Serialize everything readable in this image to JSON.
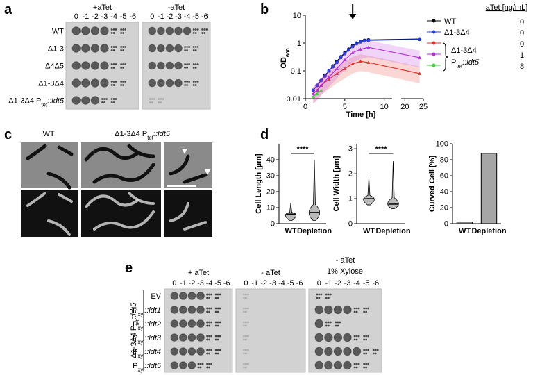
{
  "panel_a": {
    "letter": "a",
    "conditions": [
      "+aTet",
      "-aTet"
    ],
    "dilutions": [
      "0",
      "-1",
      "-2",
      "-3",
      "-4",
      "-5",
      "-6"
    ],
    "strains": [
      "WT",
      "Δ1-3",
      "Δ4Δ5",
      "Δ1-3Δ4",
      {
        "parts": [
          {
            "t": "Δ1-3Δ4 P"
          },
          {
            "t": "tet",
            "sub": true
          },
          {
            "t": "::ldt5",
            "i": true
          }
        ]
      }
    ]
  },
  "panel_c": {
    "letter": "c",
    "labels": [
      "WT",
      {
        "parts": [
          {
            "t": "Δ1-3Δ4 P"
          },
          {
            "t": "tet",
            "sub": true
          },
          {
            "t": "::ldt5",
            "i": true
          }
        ]
      }
    ]
  },
  "panel_e": {
    "letter": "e",
    "conditions": [
      "+ aTet",
      "- aTet",
      "- aTet"
    ],
    "condition_note": "1% Xylose",
    "dilutions": [
      "0",
      "-1",
      "-2",
      "-3",
      "-4",
      "-5",
      "-6"
    ],
    "strains": [
      "EV",
      {
        "parts": [
          {
            "t": "P"
          },
          {
            "t": "xyl",
            "sub": true
          },
          {
            "t": "::ldt1",
            "i": true
          }
        ]
      },
      {
        "parts": [
          {
            "t": "P"
          },
          {
            "t": "xyl",
            "sub": true
          },
          {
            "t": "::ldt2",
            "i": true
          }
        ]
      },
      {
        "parts": [
          {
            "t": "P"
          },
          {
            "t": "xyl",
            "sub": true
          },
          {
            "t": "::ldt3",
            "i": true
          }
        ]
      },
      {
        "parts": [
          {
            "t": "P"
          },
          {
            "t": "xyl",
            "sub": true
          },
          {
            "t": "::ldt4",
            "i": true
          }
        ]
      },
      {
        "parts": [
          {
            "t": "P"
          },
          {
            "t": "xyl",
            "sub": true
          },
          {
            "t": "::ldt5",
            "i": true
          }
        ]
      }
    ],
    "group_label": {
      "parts": [
        {
          "t": "Δ1-3Δ4 P"
        },
        {
          "t": "tet",
          "sub": true
        },
        {
          "t": "::ldt5",
          "i": true
        }
      ]
    }
  },
  "chart_data": [
    {
      "type": "line",
      "panel_label": "b",
      "log_y": true,
      "x_label": "Time [h]",
      "y_label": "OD",
      "y_label_sub": "600",
      "xlim": [
        0,
        25
      ],
      "x_segments": [
        [
          0,
          11
        ],
        [
          19,
          25
        ]
      ],
      "xticks": [
        0,
        5,
        10,
        20,
        25
      ],
      "ylim": [
        0.01,
        10
      ],
      "yticks": [
        0.01,
        0.1,
        1,
        10
      ],
      "arrow_x": 6,
      "atet_header": "aTet [ng/mL]",
      "atet_values": [
        "0",
        "0",
        "0",
        "1",
        "8"
      ],
      "group_label": [
        "Δ1-3Δ4",
        {
          "parts": [
            {
              "t": "P"
            },
            {
              "t": "tet",
              "sub": true
            },
            {
              "t": "::ldt5",
              "i": true
            }
          ]
        }
      ],
      "series": [
        {
          "name": "WT",
          "color": "#000000",
          "x": [
            1,
            1.5,
            2,
            2.5,
            3,
            3.5,
            4,
            4.5,
            5,
            5.5,
            6,
            6.5,
            7,
            7.5,
            8,
            24
          ],
          "values": [
            0.02,
            0.03,
            0.045,
            0.07,
            0.1,
            0.15,
            0.22,
            0.32,
            0.45,
            0.6,
            0.8,
            1.0,
            1.15,
            1.25,
            1.3,
            1.4
          ]
        },
        {
          "name": "Δ1-3Δ4",
          "color": "#1f3fe0",
          "x": [
            1,
            1.5,
            2,
            2.5,
            3,
            3.5,
            4,
            4.5,
            5,
            5.5,
            6,
            6.5,
            7,
            7.5,
            8,
            24
          ],
          "values": [
            0.02,
            0.03,
            0.045,
            0.065,
            0.1,
            0.14,
            0.2,
            0.3,
            0.42,
            0.57,
            0.75,
            0.95,
            1.1,
            1.2,
            1.25,
            1.35
          ]
        },
        {
          "color": "#e8322b",
          "x": [
            1,
            1.5,
            2,
            3,
            4,
            5,
            6,
            7,
            8,
            24
          ],
          "values": [
            0.015,
            0.02,
            0.03,
            0.05,
            0.08,
            0.12,
            0.18,
            0.22,
            0.2,
            0.08
          ]
        },
        {
          "color": "#b52ee0",
          "x": [
            1,
            1.5,
            2,
            3,
            4,
            5,
            6,
            7,
            8,
            24
          ],
          "values": [
            0.015,
            0.02,
            0.03,
            0.06,
            0.12,
            0.25,
            0.45,
            0.6,
            0.7,
            0.3
          ]
        },
        {
          "color": "#3fcf3f",
          "x": [
            1,
            1.5,
            2
          ],
          "values": [
            0.012,
            0.015,
            0.02
          ]
        }
      ]
    },
    {
      "type": "violin",
      "panel_label": "d",
      "y_label": "Cell Length [µm]",
      "categories": [
        "WT",
        "Depletion"
      ],
      "medians": [
        6,
        7
      ],
      "mins": [
        2,
        2
      ],
      "maxs": [
        13,
        40
      ],
      "ylim": [
        0,
        50
      ],
      "yticks": [
        0,
        10,
        20,
        30,
        40
      ],
      "significance": "****"
    },
    {
      "type": "violin",
      "y_label": "Cell Width [µm]",
      "categories": [
        "WT",
        "Depletion"
      ],
      "medians": [
        1.0,
        0.78
      ],
      "mins": [
        0.75,
        0.6
      ],
      "maxs": [
        1.85,
        2.5
      ],
      "ylim": [
        0,
        3.2
      ],
      "yticks": [
        0,
        1,
        2,
        3
      ],
      "significance": "****"
    },
    {
      "type": "bar",
      "y_label": "Curved Cell [%]",
      "categories": [
        "WT",
        "Depletion"
      ],
      "values": [
        2,
        88
      ],
      "color": "#a6a6a6",
      "ylim": [
        0,
        100
      ],
      "yticks": [
        0,
        20,
        40,
        60,
        80,
        100
      ]
    }
  ]
}
